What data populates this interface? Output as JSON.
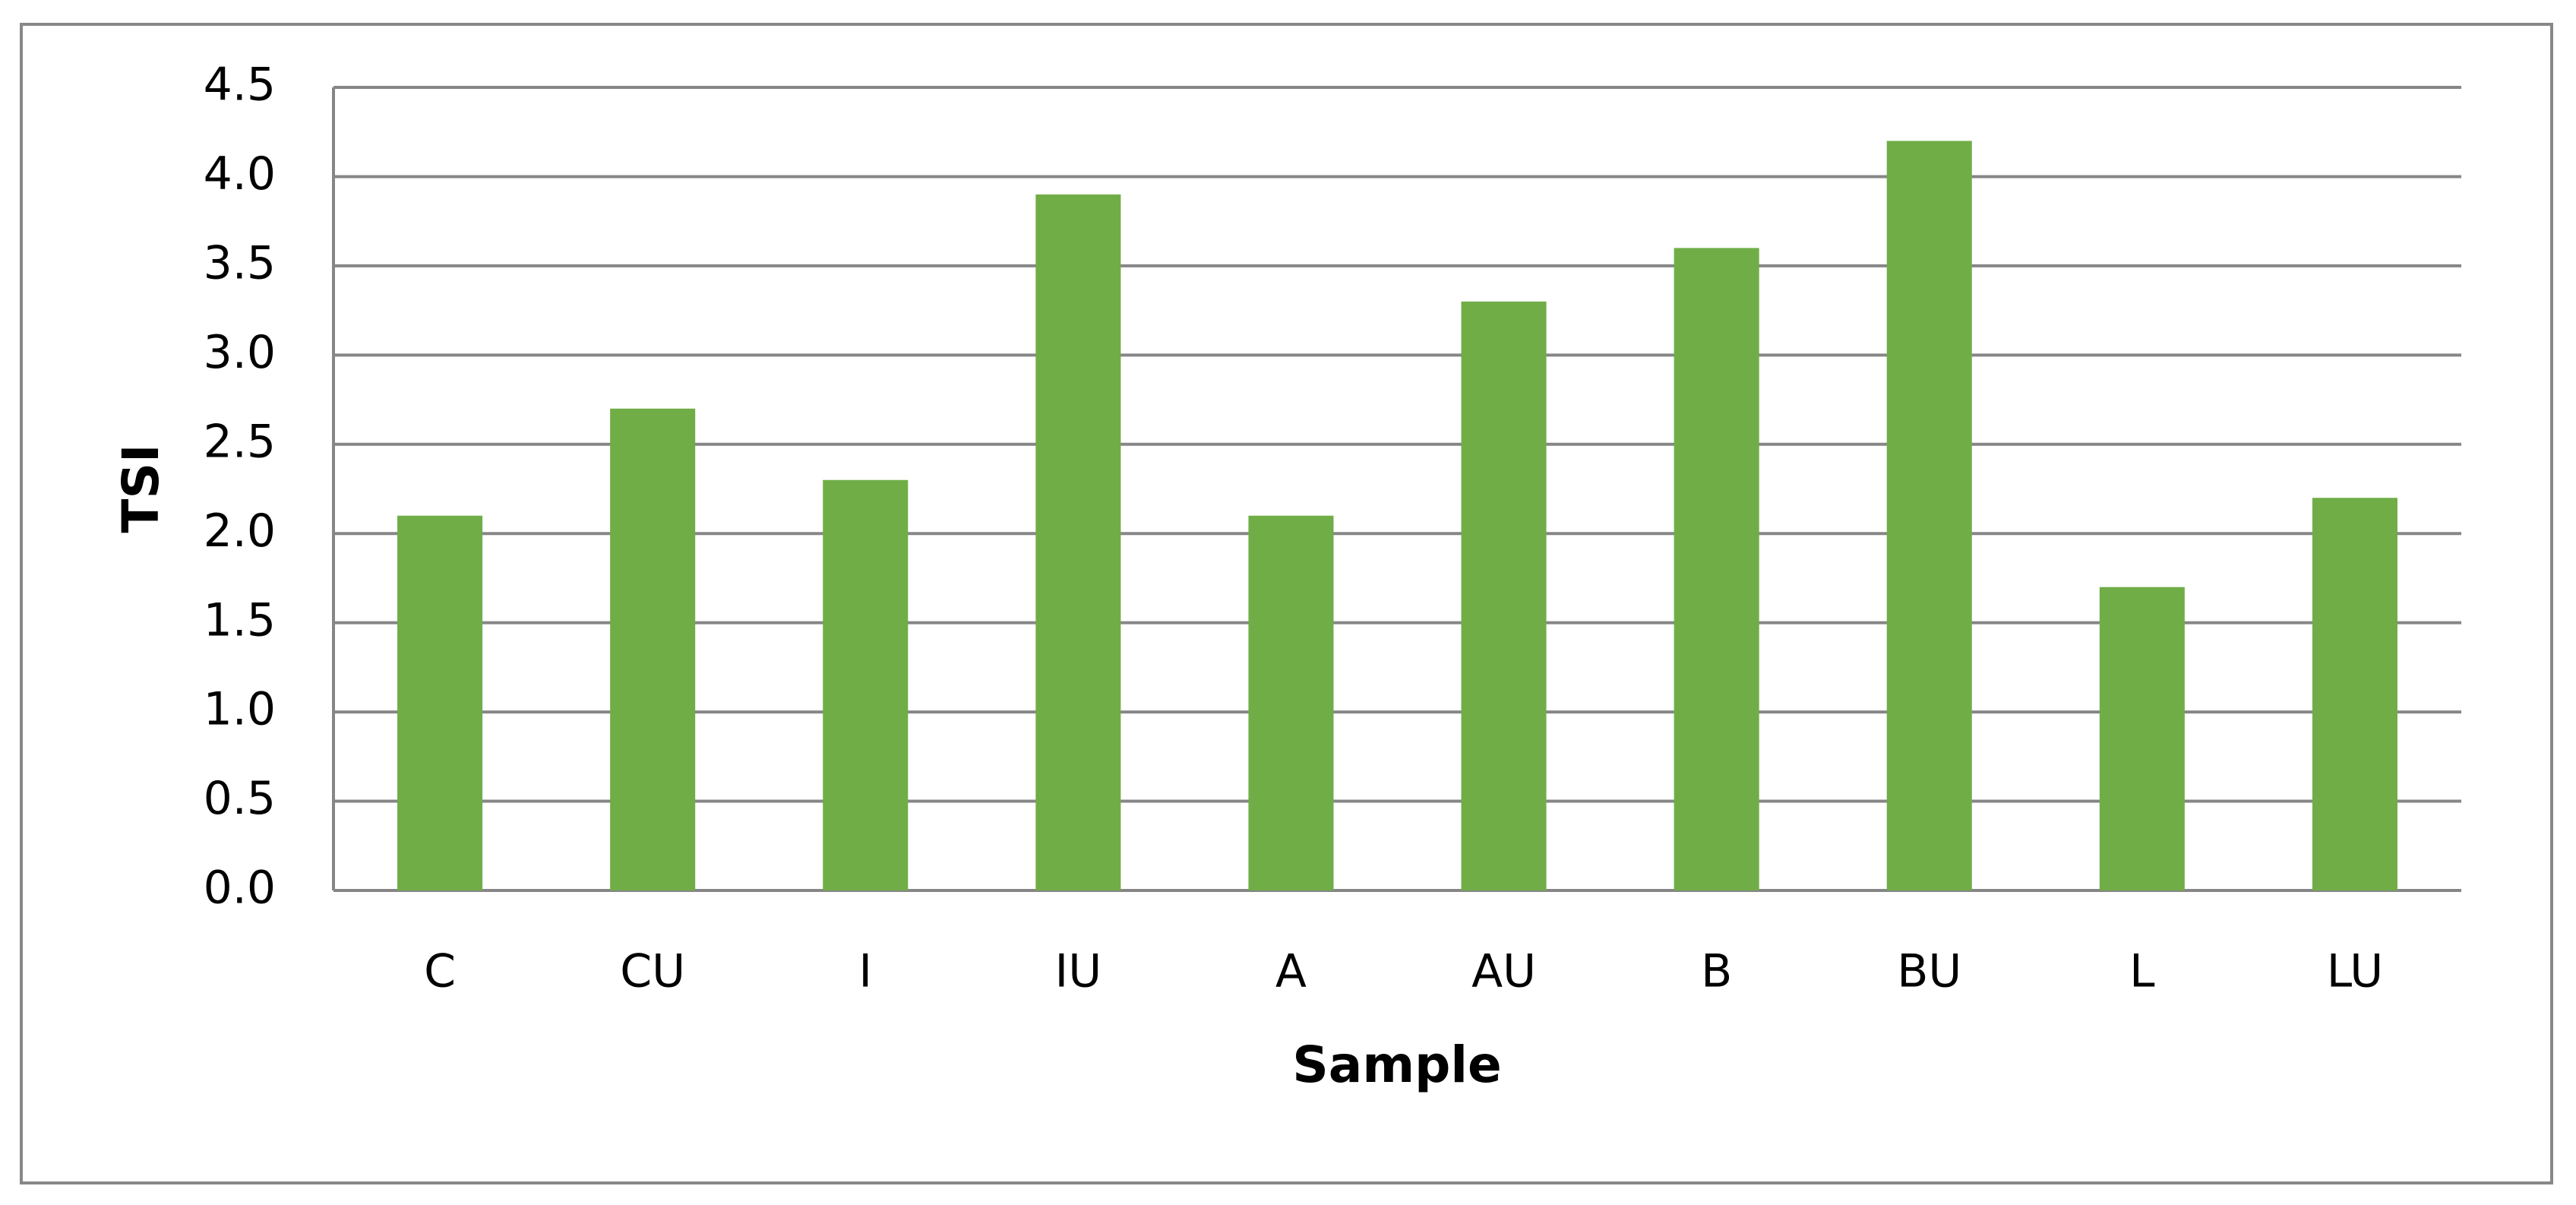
{
  "chart_data": {
    "type": "bar",
    "x_label": "Sample",
    "y_label": "TSI",
    "categories": [
      "C",
      "CU",
      "I",
      "IU",
      "A",
      "AU",
      "B",
      "BU",
      "L",
      "LU"
    ],
    "values": [
      2.1,
      2.7,
      2.3,
      3.9,
      2.1,
      3.3,
      3.6,
      4.2,
      1.7,
      2.2
    ],
    "color": "#70ad47",
    "ylim": [
      0,
      4.5
    ],
    "yticks": [
      {
        "value": 0,
        "label": "0.0"
      },
      0.5,
      {
        "value": 1,
        "label": "1.0"
      },
      1.5,
      {
        "value": 2,
        "label": "2.0"
      },
      2.5,
      {
        "value": 3,
        "label": "3.0"
      },
      3.5,
      {
        "value": 4,
        "label": "4.0"
      },
      4.5
    ],
    "grid": true
  }
}
